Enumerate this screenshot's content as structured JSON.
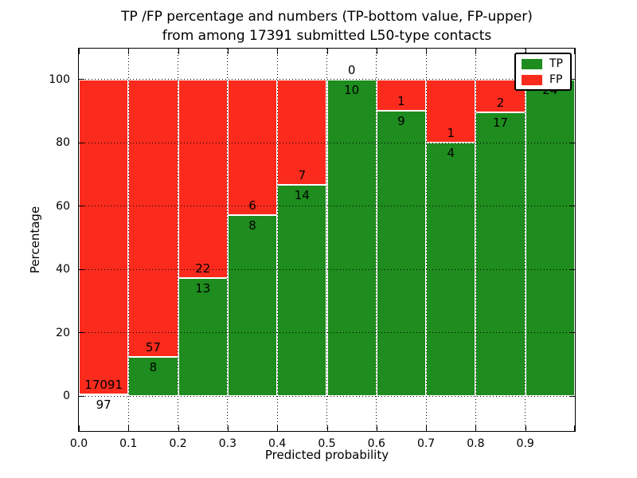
{
  "chart_data": {
    "type": "bar",
    "stacked": true,
    "title_line1": "TP /FP percentage and numbers (TP-bottom value, FP-upper)",
    "title_line2": "from among 17391 submitted L50-type contacts",
    "xlabel": "Predicted probability",
    "ylabel": "Percentage",
    "x_ticks": [
      "0.0",
      "0.1",
      "0.2",
      "0.3",
      "0.4",
      "0.5",
      "0.6",
      "0.7",
      "0.8",
      "0.9"
    ],
    "y_ticks": [
      0,
      20,
      40,
      60,
      80,
      100
    ],
    "xlim": [
      0.0,
      1.0
    ],
    "ylim": [
      -11,
      110
    ],
    "grid_style": "dotted",
    "legend_position": "upper-right",
    "bin_width": 0.1,
    "bin_starts": [
      0.0,
      0.1,
      0.2,
      0.3,
      0.4,
      0.5,
      0.6,
      0.7,
      0.8,
      0.9
    ],
    "series": [
      {
        "name": "TP",
        "color": "#1e8c1e",
        "counts": [
          97,
          8,
          13,
          8,
          14,
          10,
          9,
          4,
          17,
          24
        ]
      },
      {
        "name": "FP",
        "color": "#fa2b1d",
        "counts": [
          17091,
          57,
          22,
          6,
          7,
          0,
          1,
          1,
          2,
          0
        ]
      }
    ],
    "tp_percent_heights": [
      0.56,
      12.31,
      37.14,
      57.14,
      66.67,
      100.0,
      90.0,
      80.0,
      89.47,
      100.0
    ],
    "total_contacts": 17391,
    "bar_edge_color": "#ffffff",
    "axis_color": "#000000"
  }
}
